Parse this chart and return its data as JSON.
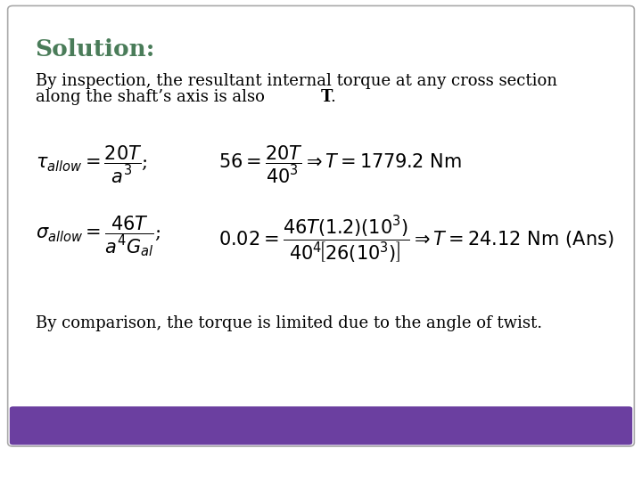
{
  "title": "Solution:",
  "title_color": "#4a7c59",
  "bg_color": "#ffffff",
  "border_color": "#aaaaaa",
  "bottom_bar_color": "#6b3fa0",
  "bottom_bar_height": 0.07,
  "text1_line1": "By inspection, the resultant internal torque at any cross section",
  "text1_line2": "along the shaft’s axis is also ",
  "text1_bold": "T",
  "text1_suffix": ".",
  "conclusion": "By comparison, the torque is limited due to the angle of twist.",
  "fig_width": 7.2,
  "fig_height": 5.4,
  "dpi": 100
}
